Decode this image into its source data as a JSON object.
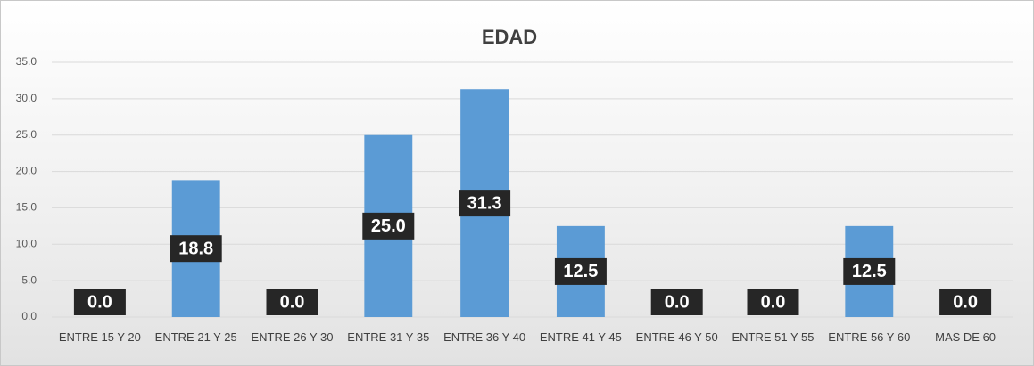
{
  "chart_data": {
    "type": "bar",
    "title": "EDAD",
    "categories": [
      "ENTRE 15 Y 20",
      "ENTRE 21 Y 25",
      "ENTRE 26 Y 30",
      "ENTRE 31 Y 35",
      "ENTRE 36 Y 40",
      "ENTRE 41 Y 45",
      "ENTRE 46 Y 50",
      "ENTRE 51 Y 55",
      "ENTRE 56 Y 60",
      "MAS DE 60"
    ],
    "values": [
      0,
      18.8,
      0,
      25,
      31.3,
      12.5,
      0,
      0,
      12.5,
      0
    ],
    "value_labels": [
      "0.0",
      "18.8",
      "0.0",
      "25.0",
      "31.3",
      "12.5",
      "0.0",
      "0.0",
      "12.5",
      "0.0"
    ],
    "color": "#5b9bd5",
    "ylim": [
      0,
      35
    ],
    "yticks": [
      {
        "value": 0,
        "label": "0.0"
      },
      {
        "value": 5,
        "label": "5.0"
      },
      {
        "value": 10,
        "label": "10.0"
      },
      {
        "value": 15,
        "label": "15.0"
      },
      {
        "value": 20,
        "label": "20.0"
      },
      {
        "value": 25,
        "label": "25.0"
      },
      {
        "value": 30,
        "label": "30.0"
      },
      {
        "value": 35,
        "label": "35.0"
      }
    ],
    "grid": true
  }
}
